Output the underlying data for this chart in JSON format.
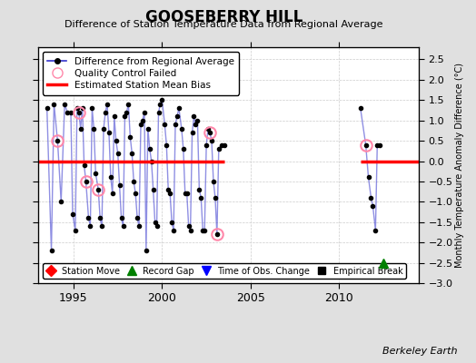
{
  "title": "GOOSEBERRY HILL",
  "subtitle": "Difference of Station Temperature Data from Regional Average",
  "ylabel_right": "Monthly Temperature Anomaly Difference (°C)",
  "credit": "Berkeley Earth",
  "xlim": [
    1993.0,
    2014.5
  ],
  "ylim": [
    -3.0,
    2.8
  ],
  "yticks": [
    -3,
    -2.5,
    -2,
    -1.5,
    -1,
    -0.5,
    0,
    0.5,
    1,
    1.5,
    2,
    2.5
  ],
  "xticks": [
    1995,
    2000,
    2005,
    2010
  ],
  "bias_segments": [
    {
      "x_start": 1993.0,
      "x_end": 2003.5,
      "y": 0.0
    },
    {
      "x_start": 2011.2,
      "x_end": 2014.5,
      "y": 0.0
    }
  ],
  "record_gap_x": 2012.5,
  "record_gap_y": -2.5,
  "main_data": [
    [
      1993.5,
      1.3
    ],
    [
      1993.75,
      -2.2
    ],
    [
      1993.9,
      1.4
    ],
    [
      1994.1,
      0.5
    ],
    [
      1994.3,
      -1.0
    ],
    [
      1994.5,
      1.4
    ],
    [
      1994.65,
      1.2
    ],
    [
      1994.85,
      1.2
    ],
    [
      1994.95,
      -1.3
    ],
    [
      1995.1,
      -1.7
    ],
    [
      1995.2,
      1.3
    ],
    [
      1995.3,
      1.2
    ],
    [
      1995.4,
      0.8
    ],
    [
      1995.5,
      1.3
    ],
    [
      1995.6,
      -0.1
    ],
    [
      1995.7,
      -0.5
    ],
    [
      1995.85,
      -1.4
    ],
    [
      1995.95,
      -1.6
    ],
    [
      1996.05,
      1.3
    ],
    [
      1996.15,
      0.8
    ],
    [
      1996.25,
      -0.3
    ],
    [
      1996.4,
      -0.7
    ],
    [
      1996.5,
      -1.4
    ],
    [
      1996.6,
      -1.6
    ],
    [
      1996.7,
      0.8
    ],
    [
      1996.8,
      1.2
    ],
    [
      1996.9,
      1.4
    ],
    [
      1997.0,
      0.7
    ],
    [
      1997.1,
      -0.4
    ],
    [
      1997.2,
      -0.8
    ],
    [
      1997.3,
      1.1
    ],
    [
      1997.4,
      0.5
    ],
    [
      1997.5,
      0.2
    ],
    [
      1997.6,
      -0.6
    ],
    [
      1997.7,
      -1.4
    ],
    [
      1997.8,
      -1.6
    ],
    [
      1997.9,
      1.1
    ],
    [
      1998.0,
      1.2
    ],
    [
      1998.1,
      1.4
    ],
    [
      1998.2,
      0.6
    ],
    [
      1998.3,
      0.2
    ],
    [
      1998.4,
      -0.5
    ],
    [
      1998.5,
      -0.8
    ],
    [
      1998.6,
      -1.4
    ],
    [
      1998.7,
      -1.6
    ],
    [
      1998.8,
      0.9
    ],
    [
      1998.9,
      1.0
    ],
    [
      1999.0,
      1.2
    ],
    [
      1999.1,
      -2.2
    ],
    [
      1999.2,
      0.8
    ],
    [
      1999.3,
      0.3
    ],
    [
      1999.4,
      0.0
    ],
    [
      1999.5,
      -0.7
    ],
    [
      1999.6,
      -1.5
    ],
    [
      1999.7,
      -1.6
    ],
    [
      1999.8,
      1.2
    ],
    [
      1999.9,
      1.4
    ],
    [
      2000.0,
      1.5
    ],
    [
      2000.15,
      0.9
    ],
    [
      2000.25,
      0.4
    ],
    [
      2000.35,
      -0.7
    ],
    [
      2000.45,
      -0.8
    ],
    [
      2000.55,
      -1.5
    ],
    [
      2000.65,
      -1.7
    ],
    [
      2000.75,
      0.9
    ],
    [
      2000.85,
      1.1
    ],
    [
      2000.95,
      1.3
    ],
    [
      2001.1,
      0.8
    ],
    [
      2001.2,
      0.3
    ],
    [
      2001.3,
      -0.8
    ],
    [
      2001.4,
      -0.8
    ],
    [
      2001.5,
      -1.6
    ],
    [
      2001.6,
      -1.7
    ],
    [
      2001.7,
      0.7
    ],
    [
      2001.8,
      1.1
    ],
    [
      2001.9,
      0.9
    ],
    [
      2002.0,
      1.0
    ],
    [
      2002.1,
      -0.7
    ],
    [
      2002.2,
      -0.9
    ],
    [
      2002.3,
      -1.7
    ],
    [
      2002.4,
      -1.7
    ],
    [
      2002.5,
      0.4
    ],
    [
      2002.6,
      0.8
    ],
    [
      2002.7,
      0.7
    ],
    [
      2002.8,
      0.5
    ],
    [
      2002.9,
      -0.5
    ],
    [
      2003.0,
      -0.9
    ],
    [
      2003.1,
      -1.8
    ],
    [
      2003.2,
      0.3
    ],
    [
      2003.35,
      0.4
    ],
    [
      2003.5,
      0.4
    ],
    [
      2011.2,
      1.3
    ],
    [
      2011.5,
      0.4
    ],
    [
      2011.65,
      -0.4
    ],
    [
      2011.8,
      -0.9
    ],
    [
      2011.9,
      -1.1
    ],
    [
      2012.05,
      -1.7
    ],
    [
      2012.15,
      0.4
    ],
    [
      2012.3,
      0.4
    ]
  ],
  "qc_failed": [
    [
      1994.1,
      0.5
    ],
    [
      1995.3,
      1.2
    ],
    [
      1995.7,
      -0.5
    ],
    [
      1996.4,
      -0.7
    ],
    [
      2002.7,
      0.7
    ],
    [
      2003.1,
      -1.8
    ],
    [
      2011.5,
      0.4
    ]
  ],
  "line_color": "#3333cc",
  "line_alpha": 0.55,
  "dot_color": "black",
  "dot_size": 3,
  "bias_color": "red",
  "qc_edge_color": "#ff88aa",
  "bg_color": "#e0e0e0",
  "plot_bg_color": "white",
  "grid_color": "#cccccc",
  "grid_style": "--"
}
